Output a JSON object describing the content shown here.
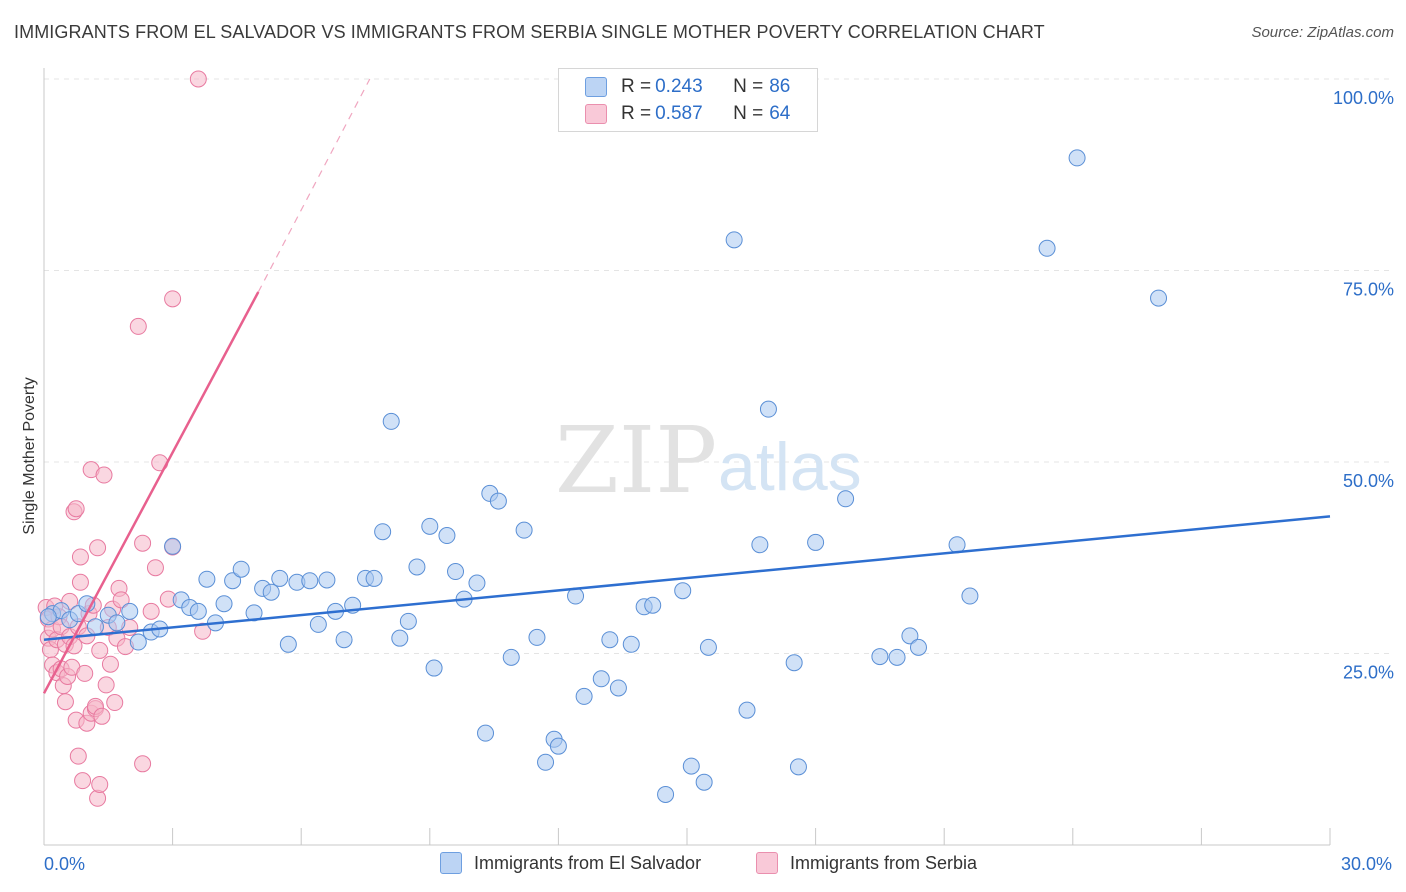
{
  "header": {
    "title": "IMMIGRANTS FROM EL SALVADOR VS IMMIGRANTS FROM SERBIA SINGLE MOTHER POVERTY CORRELATION CHART",
    "source": "Source: ZipAtlas.com"
  },
  "watermark": {
    "zip": "ZIP",
    "atlas": "atlas"
  },
  "legend": {
    "rows": [
      {
        "r_label": "R =",
        "r_value": "0.243",
        "n_label": "N =",
        "n_value": "86"
      },
      {
        "r_label": "R =",
        "r_value": "0.587",
        "n_label": "N =",
        "n_value": "64"
      }
    ]
  },
  "colors": {
    "blue_fill": "#a9c8f0",
    "blue_stroke": "#5a8fd6",
    "blue_line": "#2e6fd0",
    "pink_fill": "#f6b6c9",
    "pink_stroke": "#e87aa0",
    "pink_line": "#e8608e",
    "tick_text": "#2d6ec8",
    "grid": "#e4e4e4"
  },
  "chart_data": {
    "type": "scatter",
    "xlabel": "",
    "ylabel": "Single Mother Poverty",
    "xlim": [
      0,
      30
    ],
    "ylim": [
      0,
      100
    ],
    "x_tick_labels": [
      "0.0%",
      "30.0%"
    ],
    "y_ticks": [
      25,
      50,
      75,
      100
    ],
    "y_tick_labels": [
      "25.0%",
      "50.0%",
      "75.0%",
      "100.0%"
    ],
    "grid": true,
    "legend_position": "top-center",
    "series": [
      {
        "name": "Immigrants from El Salvador",
        "color": "#a9c8f0",
        "trend": {
          "x": [
            0,
            30
          ],
          "y": [
            26.8,
            42.9
          ]
        },
        "points": [
          [
            0.2,
            30.2
          ],
          [
            0.4,
            30.6
          ],
          [
            0.6,
            29.4
          ],
          [
            0.8,
            30.2
          ],
          [
            1.0,
            31.5
          ],
          [
            1.2,
            28.5
          ],
          [
            1.5,
            30.0
          ],
          [
            1.7,
            29.0
          ],
          [
            2.0,
            30.5
          ],
          [
            2.2,
            26.5
          ],
          [
            2.5,
            27.8
          ],
          [
            2.7,
            28.2
          ],
          [
            3.0,
            39.0
          ],
          [
            3.2,
            32.0
          ],
          [
            3.4,
            31.0
          ],
          [
            3.6,
            30.5
          ],
          [
            3.8,
            34.7
          ],
          [
            4.0,
            29.0
          ],
          [
            4.2,
            31.5
          ],
          [
            4.4,
            34.5
          ],
          [
            4.6,
            36.0
          ],
          [
            4.9,
            30.3
          ],
          [
            5.1,
            33.5
          ],
          [
            5.3,
            33.0
          ],
          [
            5.5,
            34.8
          ],
          [
            5.7,
            26.2
          ],
          [
            5.9,
            34.3
          ],
          [
            6.2,
            34.5
          ],
          [
            6.4,
            28.8
          ],
          [
            6.6,
            34.6
          ],
          [
            6.8,
            30.5
          ],
          [
            7.0,
            26.8
          ],
          [
            7.2,
            31.3
          ],
          [
            7.5,
            34.8
          ],
          [
            7.7,
            34.8
          ],
          [
            7.9,
            40.9
          ],
          [
            8.1,
            55.3
          ],
          [
            8.3,
            27.0
          ],
          [
            8.5,
            29.2
          ],
          [
            8.7,
            36.3
          ],
          [
            9.0,
            41.6
          ],
          [
            9.1,
            23.1
          ],
          [
            9.4,
            40.4
          ],
          [
            9.6,
            35.7
          ],
          [
            9.8,
            32.1
          ],
          [
            10.1,
            34.2
          ],
          [
            10.3,
            14.6
          ],
          [
            10.4,
            45.9
          ],
          [
            10.6,
            44.9
          ],
          [
            10.9,
            24.5
          ],
          [
            11.2,
            41.1
          ],
          [
            11.5,
            27.1
          ],
          [
            11.7,
            10.8
          ],
          [
            11.9,
            13.8
          ],
          [
            12.0,
            12.9
          ],
          [
            12.4,
            32.5
          ],
          [
            12.6,
            19.4
          ],
          [
            13.0,
            21.7
          ],
          [
            13.2,
            26.8
          ],
          [
            13.4,
            20.5
          ],
          [
            13.7,
            26.2
          ],
          [
            14.0,
            31.1
          ],
          [
            14.2,
            31.3
          ],
          [
            14.5,
            6.6
          ],
          [
            14.9,
            33.2
          ],
          [
            15.1,
            10.3
          ],
          [
            15.4,
            8.2
          ],
          [
            15.5,
            25.8
          ],
          [
            16.1,
            79.0
          ],
          [
            16.4,
            17.6
          ],
          [
            16.7,
            39.2
          ],
          [
            16.9,
            56.9
          ],
          [
            17.5,
            23.8
          ],
          [
            17.6,
            10.2
          ],
          [
            18.0,
            39.5
          ],
          [
            18.7,
            45.2
          ],
          [
            19.5,
            24.6
          ],
          [
            19.9,
            24.5
          ],
          [
            20.2,
            27.3
          ],
          [
            20.4,
            25.8
          ],
          [
            21.3,
            39.2
          ],
          [
            21.6,
            32.5
          ],
          [
            23.4,
            77.9
          ],
          [
            24.1,
            89.7
          ],
          [
            26.0,
            71.4
          ],
          [
            0.1,
            29.8
          ]
        ]
      },
      {
        "name": "Immigrants from Serbia",
        "color": "#f6b6c9",
        "trend": {
          "x": [
            0,
            5
          ],
          "y": [
            19.8,
            72.2
          ]
        },
        "trend_dashed": {
          "x": [
            5,
            7.6
          ],
          "y": [
            72.2,
            100
          ]
        },
        "points": [
          [
            0.05,
            31.0
          ],
          [
            0.1,
            29.5
          ],
          [
            0.1,
            27.0
          ],
          [
            0.15,
            25.5
          ],
          [
            0.2,
            23.5
          ],
          [
            0.2,
            28.2
          ],
          [
            0.25,
            31.2
          ],
          [
            0.3,
            22.5
          ],
          [
            0.3,
            26.8
          ],
          [
            0.35,
            29.8
          ],
          [
            0.4,
            23.0
          ],
          [
            0.4,
            28.5
          ],
          [
            0.45,
            20.8
          ],
          [
            0.5,
            26.2
          ],
          [
            0.5,
            18.7
          ],
          [
            0.55,
            22.0
          ],
          [
            0.6,
            27.2
          ],
          [
            0.6,
            31.8
          ],
          [
            0.65,
            23.2
          ],
          [
            0.7,
            26.0
          ],
          [
            0.7,
            43.5
          ],
          [
            0.75,
            43.9
          ],
          [
            0.75,
            16.3
          ],
          [
            0.8,
            11.6
          ],
          [
            0.8,
            28.5
          ],
          [
            0.85,
            34.3
          ],
          [
            0.85,
            37.6
          ],
          [
            0.9,
            8.4
          ],
          [
            0.95,
            22.4
          ],
          [
            1.0,
            15.9
          ],
          [
            1.0,
            27.3
          ],
          [
            1.05,
            30.2
          ],
          [
            1.1,
            17.2
          ],
          [
            1.1,
            49.0
          ],
          [
            1.15,
            31.3
          ],
          [
            1.2,
            17.8
          ],
          [
            1.2,
            18.1
          ],
          [
            1.25,
            6.1
          ],
          [
            1.25,
            38.8
          ],
          [
            1.3,
            7.9
          ],
          [
            1.3,
            25.4
          ],
          [
            1.35,
            16.8
          ],
          [
            1.4,
            48.3
          ],
          [
            1.45,
            20.9
          ],
          [
            1.5,
            28.4
          ],
          [
            1.55,
            23.6
          ],
          [
            1.6,
            30.8
          ],
          [
            1.65,
            18.6
          ],
          [
            1.7,
            27.0
          ],
          [
            1.75,
            33.5
          ],
          [
            1.8,
            32.0
          ],
          [
            1.9,
            25.9
          ],
          [
            2.0,
            28.4
          ],
          [
            2.2,
            67.7
          ],
          [
            2.3,
            39.4
          ],
          [
            2.3,
            10.6
          ],
          [
            2.5,
            30.5
          ],
          [
            2.6,
            36.2
          ],
          [
            2.7,
            49.9
          ],
          [
            2.9,
            32.1
          ],
          [
            3.0,
            38.9
          ],
          [
            3.0,
            71.3
          ],
          [
            3.6,
            100.0
          ],
          [
            3.7,
            27.9
          ]
        ]
      }
    ]
  }
}
